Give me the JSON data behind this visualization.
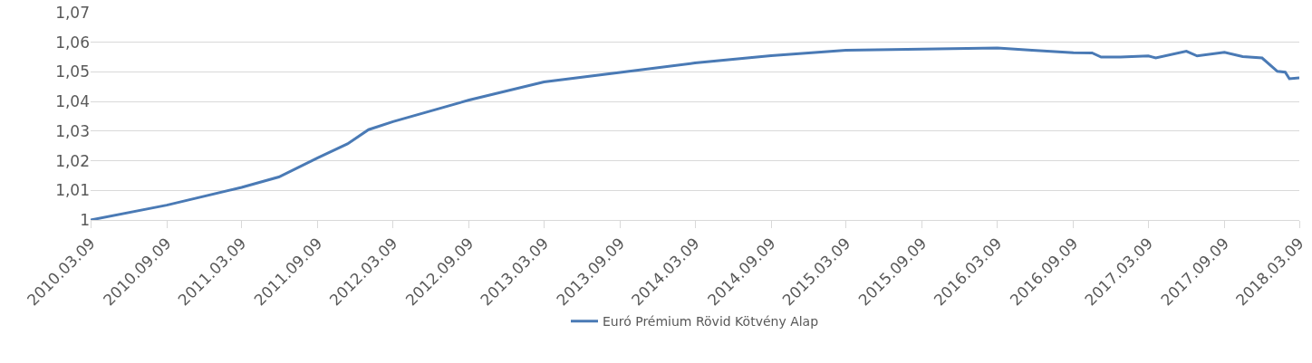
{
  "chart_data": {
    "type": "line",
    "x": [
      "2010-03-09",
      "2010-09-09",
      "2011-03-09",
      "2011-06-07",
      "2011-09-09",
      "2011-11-20",
      "2012-01-10",
      "2012-03-09",
      "2012-09-09",
      "2013-03-09",
      "2013-09-09",
      "2014-03-09",
      "2014-09-09",
      "2015-03-09",
      "2015-09-09",
      "2016-03-09",
      "2016-06-01",
      "2016-09-09",
      "2016-10-24",
      "2016-11-15",
      "2017-01-01",
      "2017-03-09",
      "2017-03-27",
      "2017-06-09",
      "2017-07-05",
      "2017-09-09",
      "2017-10-23",
      "2017-12-09",
      "2018-01-15",
      "2018-02-03",
      "2018-02-13",
      "2018-03-09"
    ],
    "series": [
      {
        "name": "Euró Prémium Rövid Kötvény Alap",
        "color": "#4a7ab5",
        "values": [
          1.0,
          1.005,
          1.011,
          1.0145,
          1.021,
          1.0257,
          1.0305,
          1.0332,
          1.0405,
          1.0466,
          1.0498,
          1.053,
          1.0555,
          1.0573,
          1.0577,
          1.0581,
          1.0573,
          1.0565,
          1.0564,
          1.055,
          1.055,
          1.0554,
          1.0547,
          1.057,
          1.0554,
          1.0566,
          1.0552,
          1.0547,
          1.0502,
          1.0499,
          1.0477,
          1.048
        ]
      }
    ],
    "xlim": [
      "2010-03-09",
      "2018-03-09"
    ],
    "xticks": [
      {
        "value": "2010-03-09",
        "label": "2010.03.09"
      },
      {
        "value": "2010-09-09",
        "label": "2010.09.09"
      },
      {
        "value": "2011-03-09",
        "label": "2011.03.09"
      },
      {
        "value": "2011-09-09",
        "label": "2011.09.09"
      },
      {
        "value": "2012-03-09",
        "label": "2012.03.09"
      },
      {
        "value": "2012-09-09",
        "label": "2012.09.09"
      },
      {
        "value": "2013-03-09",
        "label": "2013.03.09"
      },
      {
        "value": "2013-09-09",
        "label": "2013.09.09"
      },
      {
        "value": "2014-03-09",
        "label": "2014.03.09"
      },
      {
        "value": "2014-09-09",
        "label": "2014.09.09"
      },
      {
        "value": "2015-03-09",
        "label": "2015.03.09"
      },
      {
        "value": "2015-09-09",
        "label": "2015.09.09"
      },
      {
        "value": "2016-03-09",
        "label": "2016.03.09"
      },
      {
        "value": "2016-09-09",
        "label": "2016.09.09"
      },
      {
        "value": "2017-03-09",
        "label": "2017.03.09"
      },
      {
        "value": "2017-09-09",
        "label": "2017.09.09"
      },
      {
        "value": "2018-03-09",
        "label": "2018.03.09"
      }
    ],
    "ylim": [
      1,
      1.07
    ],
    "yticks": [
      1,
      {
        "value": 1.01,
        "label": "1,01"
      },
      {
        "value": 1.02,
        "label": "1,02"
      },
      {
        "value": 1.03,
        "label": "1,03"
      },
      {
        "value": 1.04,
        "label": "1,04"
      },
      {
        "value": 1.05,
        "label": "1,05"
      },
      {
        "value": 1.06,
        "label": "1,06"
      },
      {
        "value": 1.07,
        "label": "1,07"
      }
    ],
    "grid": "y",
    "legend": "bottom",
    "marker": "none",
    "line_style": "solid"
  }
}
